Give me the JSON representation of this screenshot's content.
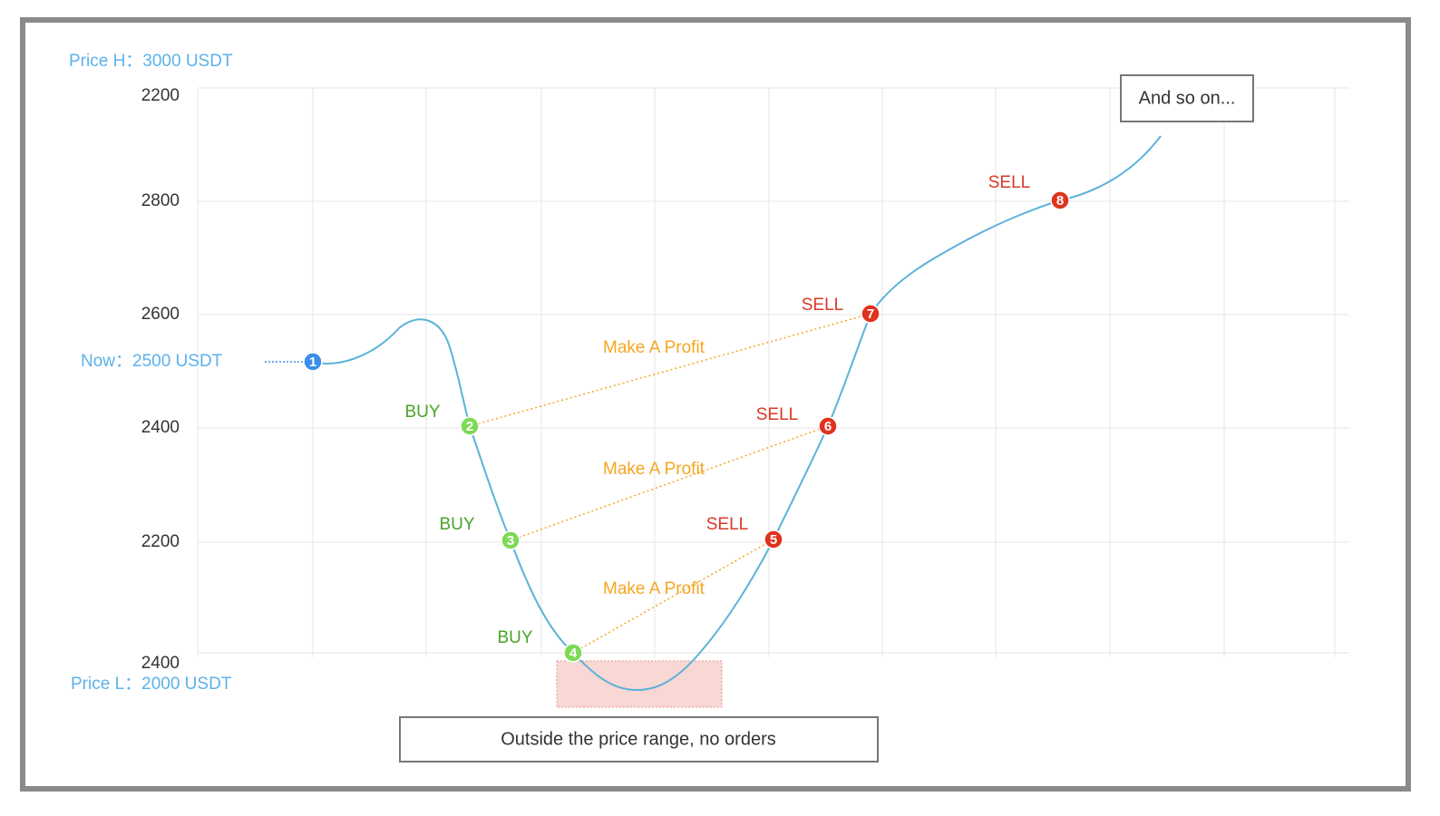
{
  "price_high": "Price H：3000 USDT",
  "price_now": "Now：2500 USDT",
  "price_low": "Price L：2000 USDT",
  "y_axis_labels": [
    "2200",
    "2800",
    "2600",
    "2400",
    "2200",
    "2400"
  ],
  "points": [
    {
      "number": "1"
    },
    {
      "number": "2",
      "action": "BUY"
    },
    {
      "number": "3",
      "action": "BUY"
    },
    {
      "number": "4",
      "action": "BUY"
    },
    {
      "number": "5",
      "action": "SELL"
    },
    {
      "number": "6",
      "action": "SELL"
    },
    {
      "number": "7",
      "action": "SELL"
    },
    {
      "number": "8",
      "action": "SELL"
    }
  ],
  "profit_labels": [
    "Make A Profit",
    "Make A Profit",
    "Make A Profit"
  ],
  "notes": {
    "and_so_on": "And so on...",
    "outside_range": "Outside the price range, no orders"
  }
}
